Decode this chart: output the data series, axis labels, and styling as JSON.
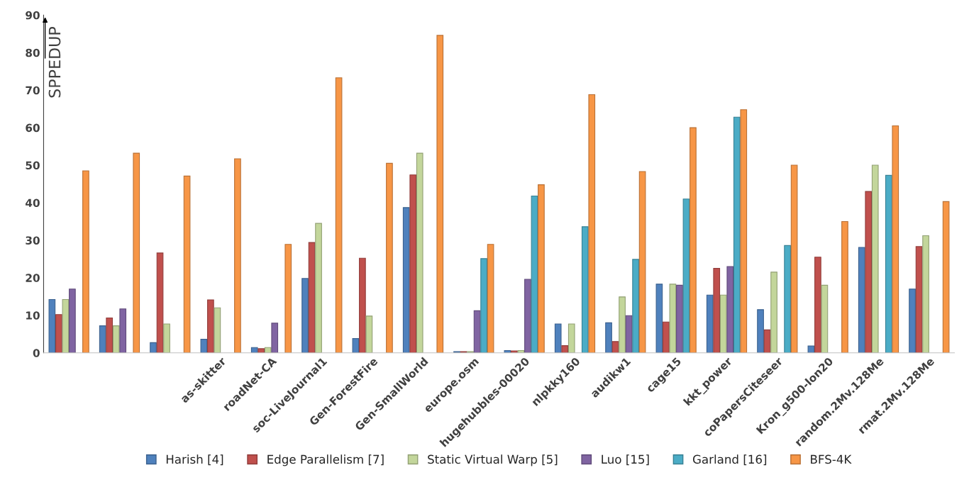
{
  "chart_data": {
    "type": "bar",
    "ylabel": "SPPEDUP",
    "categories": [
      null,
      null,
      null,
      "as-skitter",
      "roadNet-CA",
      "soc-LiveJournal1",
      "Gen-ForestFire",
      "Gen-SmallWorld",
      "europe.osm",
      "hugehubbles-00020",
      "nlpkky160",
      "audikw1",
      "cage15",
      "kkt_power",
      "coPapersCiteseer",
      "Kron_g500-lon20",
      "random.2Mv.128Me",
      "rmat.2Mv.128Me"
    ],
    "series": [
      {
        "name": "Harish [4]",
        "color": "#4f81bd",
        "values": [
          14.2,
          7.2,
          2.7,
          3.6,
          1.4,
          19.8,
          3.8,
          38.7,
          0.3,
          0.6,
          7.7,
          8,
          18.3,
          15.4,
          11.5,
          1.8,
          28.1,
          17
        ]
      },
      {
        "name": "Edge Parallelism [7]",
        "color": "#c0504d",
        "values": [
          10.2,
          9.3,
          26.6,
          14.1,
          1.1,
          29.4,
          25.2,
          47.4,
          0.3,
          0.5,
          1.9,
          3,
          8.2,
          22.5,
          6.1,
          25.5,
          43,
          28.3
        ]
      },
      {
        "name": "Static Virtual Warp [5]",
        "color": "#c3d69b",
        "values": [
          14.2,
          7.2,
          7.7,
          12,
          1.4,
          34.5,
          9.8,
          53.2,
          0.3,
          0.6,
          7.7,
          14.9,
          18.3,
          15.4,
          21.5,
          18,
          50,
          31.2
        ]
      },
      {
        "name": "Luo [15]",
        "color": "#8064a2",
        "values": [
          17,
          11.7,
          null,
          null,
          7.9,
          null,
          null,
          null,
          11.2,
          19.6,
          null,
          9.9,
          18,
          23,
          null,
          null,
          null,
          null
        ]
      },
      {
        "name": "Garland [16]",
        "color": "#4bacc6",
        "values": [
          null,
          null,
          null,
          null,
          null,
          null,
          null,
          null,
          25.1,
          41.8,
          33.6,
          24.9,
          41,
          62.8,
          28.6,
          null,
          47.3,
          null
        ]
      },
      {
        "name": "BFS-4K",
        "color": "#f79646",
        "values": [
          48.5,
          53.2,
          47.1,
          51.7,
          28.9,
          73.3,
          50.5,
          84.6,
          28.9,
          44.8,
          68.8,
          48.3,
          60,
          64.8,
          50,
          35,
          60.5,
          40.3
        ]
      }
    ],
    "ylim": [
      0,
      90
    ],
    "yticks": [
      0,
      10,
      20,
      30,
      40,
      50,
      60,
      70,
      80,
      90
    ],
    "grid": false,
    "legend": "bottom"
  }
}
